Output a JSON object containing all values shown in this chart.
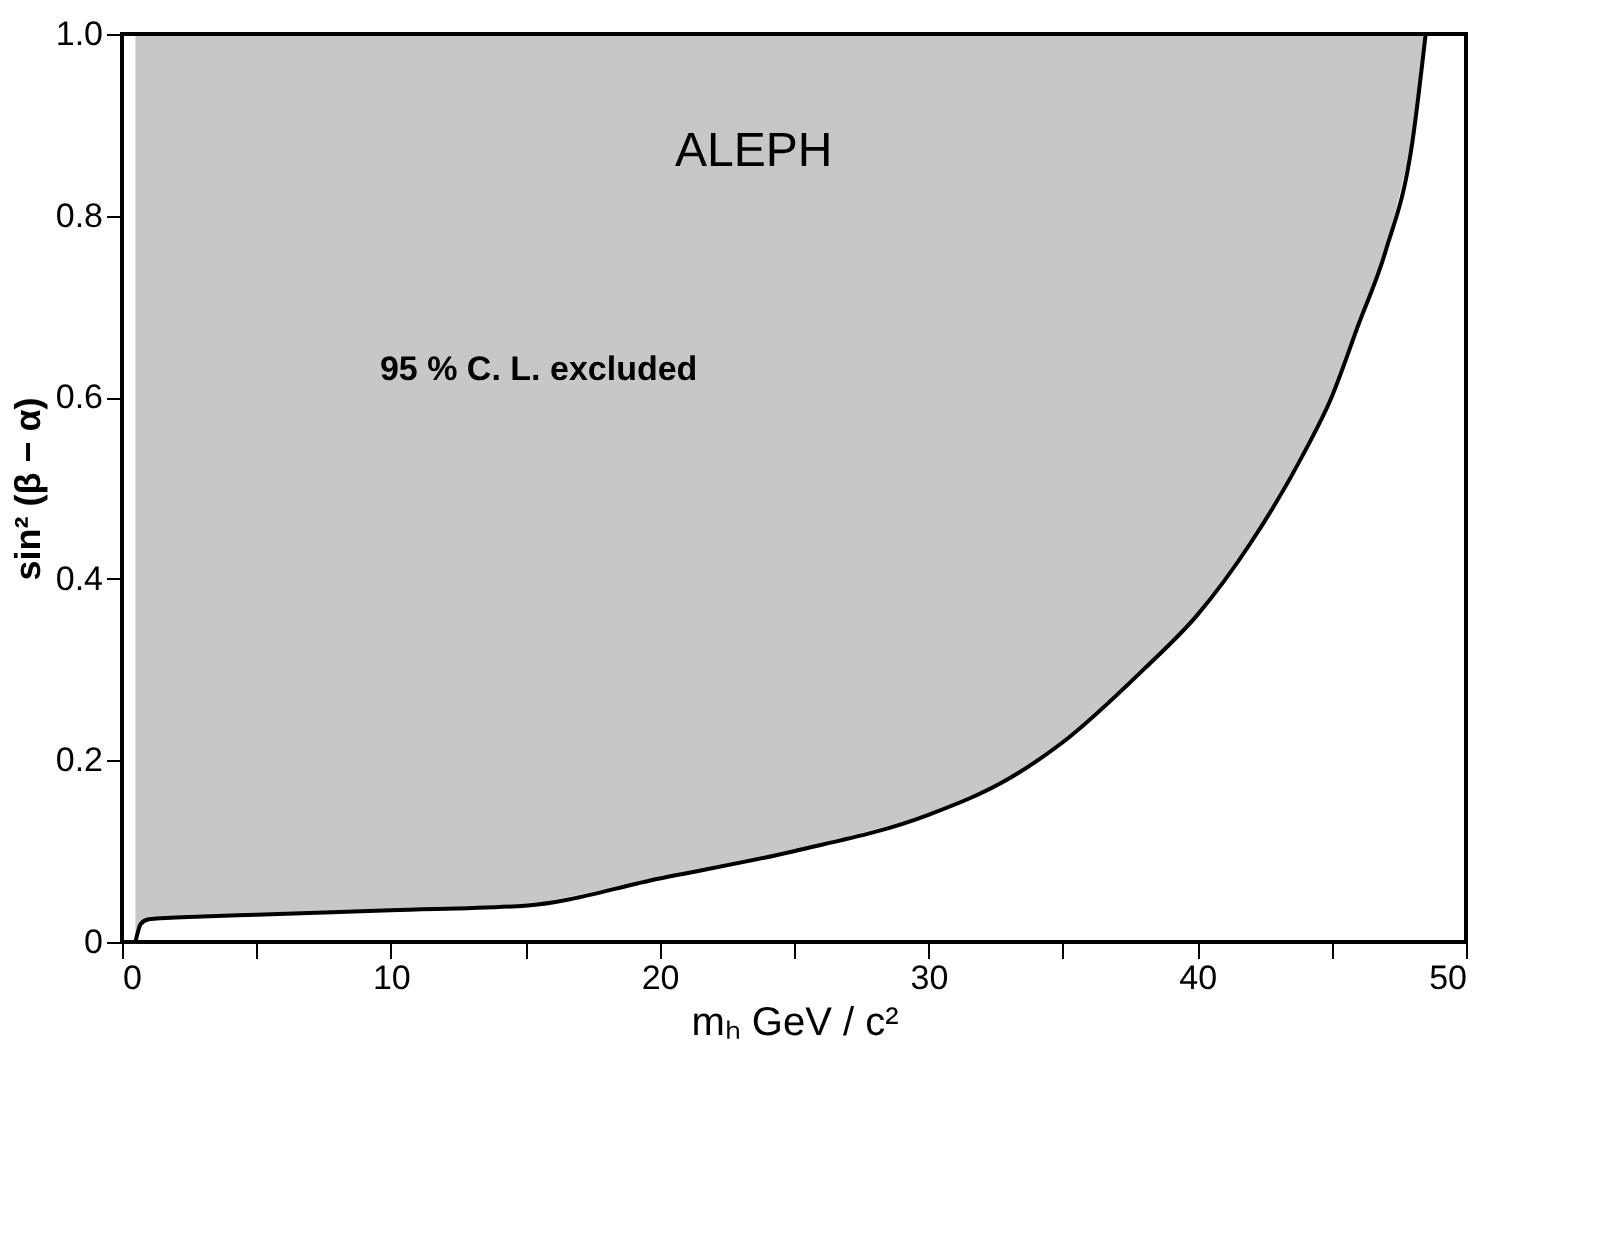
{
  "chart_data": {
    "type": "line",
    "xlabel": "mₕ  GeV / c²",
    "ylabel": "sin² (β − α)",
    "annotations": [
      "ALEPH",
      "95 %  C. L.  excluded"
    ],
    "series": [
      {
        "color": "#000000",
        "x": [
          0.5,
          0.7,
          1,
          3,
          5,
          10,
          15,
          20,
          25,
          30,
          33,
          35,
          38,
          40,
          42,
          44,
          45,
          46,
          47,
          48,
          48.5
        ],
        "values": [
          0,
          0.02,
          0.025,
          0.028,
          0.03,
          0.035,
          0.04,
          0.07,
          0.1,
          0.14,
          0.18,
          0.22,
          0.3,
          0.36,
          0.44,
          0.54,
          0.6,
          0.68,
          0.76,
          0.88,
          1.0
        ],
        "lower": [
          0,
          0.02,
          0.025,
          0.028,
          0.03,
          0.035,
          0.04,
          0.07,
          0.1,
          0.14,
          0.18,
          0.22,
          0.3,
          0.36,
          0.44,
          0.54,
          0.6,
          0.68,
          0.76,
          0.88,
          1.0
        ],
        "upper": [
          1.0,
          1.0,
          1.0,
          1.0,
          1.0,
          1.0,
          1.0,
          1.0,
          1.0,
          1.0,
          1.0,
          1.0,
          1.0,
          1.0,
          1.0,
          1.0,
          1.0,
          1.0,
          1.0,
          1.0,
          1.0
        ]
      }
    ],
    "xlim": [
      0,
      50
    ],
    "ylim": [
      0,
      1.0
    ],
    "xticks": [
      0,
      {
        "value": 5,
        "label": null
      },
      10,
      {
        "value": 15,
        "label": null
      },
      20,
      {
        "value": 25,
        "label": null
      },
      30,
      {
        "value": 35,
        "label": null
      },
      40,
      {
        "value": 45,
        "label": null
      },
      50
    ],
    "yticks": [
      {
        "value": 0,
        "label": "0"
      },
      0.2,
      0.4,
      0.6,
      0.8,
      {
        "value": 1.0,
        "label": "1.0"
      }
    ],
    "grid": false
  }
}
